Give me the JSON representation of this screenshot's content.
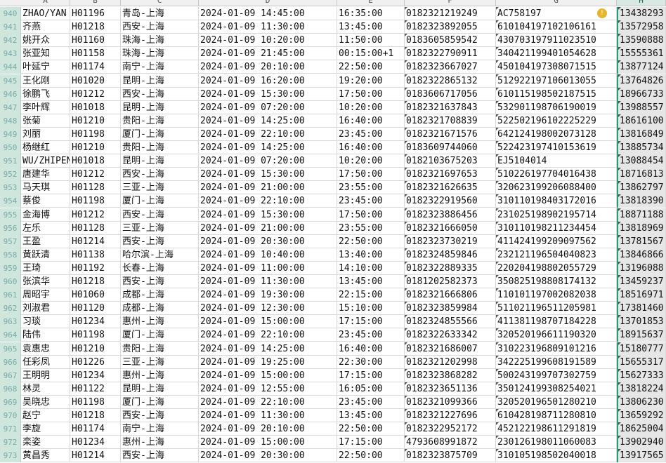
{
  "columns": [
    "A",
    "B",
    "C",
    "D",
    "E",
    "F",
    "G",
    "H"
  ],
  "selected_column": "H",
  "accent": "#1f9e7a",
  "warning_icon": "exclamation-circle-icon",
  "rows": [
    [
      "940",
      "ZHAO/YAN",
      "H01196",
      "青岛-上海",
      "2024-01-09 14:45:00",
      "16:35:00",
      "0182321219249",
      "AC758197",
      "13438293"
    ],
    [
      "941",
      "齐燕",
      "H01218",
      "西安-上海",
      "2024-01-09 11:30:00",
      "13:45:00",
      "0182323892055",
      "610104197102106161",
      "13572958"
    ],
    [
      "942",
      "姚开众",
      "H01160",
      "珠海-上海",
      "2024-01-09 10:20:00",
      "11:50:00",
      "0183605859542",
      "430703197911023510",
      "13590888"
    ],
    [
      "943",
      "张亚知",
      "H01158",
      "珠海-上海",
      "2024-01-09 21:45:00",
      "00:15:00+1",
      "0182322790911",
      "340421199401054628",
      "15555361"
    ],
    [
      "944",
      "叶延宁",
      "H01174",
      "南宁-上海",
      "2024-01-09 20:10:00",
      "22:50:00",
      "0182323667027",
      "450104197308071515",
      "13877124"
    ],
    [
      "945",
      "王化刚",
      "H01020",
      "昆明-上海",
      "2024-01-09 16:20:00",
      "19:20:00",
      "0182322865132",
      "512922197106013055",
      "13764826"
    ],
    [
      "946",
      "徐鹏飞",
      "H01212",
      "西安-上海",
      "2024-01-09 15:30:00",
      "17:50:00",
      "0183606717056",
      "610115198502187515",
      "18966733"
    ],
    [
      "947",
      "李叶辉",
      "H01018",
      "昆明-上海",
      "2024-01-09 07:20:00",
      "10:20:00",
      "0182321637843",
      "532901198706190019",
      "13988557"
    ],
    [
      "948",
      "张菊",
      "H01210",
      "贵阳-上海",
      "2024-01-09 14:25:00",
      "16:40:00",
      "0182321708839",
      "522502196102225229",
      "18616100"
    ],
    [
      "949",
      "刘丽",
      "H01198",
      "厦门-上海",
      "2024-01-09 22:10:00",
      "23:45:00",
      "0182321671576",
      "642124198002073128",
      "13816849"
    ],
    [
      "950",
      "杨继红",
      "H01210",
      "贵阳-上海",
      "2024-01-09 14:25:00",
      "16:40:00",
      "0183609744060",
      "522423197410153619",
      "13885734"
    ],
    [
      "951",
      "WU/ZHIPEN",
      "H01018",
      "昆明-上海",
      "2024-01-09 07:20:00",
      "10:20:00",
      "0182103675203",
      "EJ5104014",
      "13088454"
    ],
    [
      "952",
      "唐建华",
      "H01212",
      "西安-上海",
      "2024-01-09 15:30:00",
      "17:50:00",
      "0182321697653",
      "510226197704016438",
      "18716813"
    ],
    [
      "953",
      "马天琪",
      "H01128",
      "三亚-上海",
      "2024-01-09 21:00:00",
      "23:55:00",
      "0182321626635",
      "320623199206088400",
      "13862797"
    ],
    [
      "954",
      "蔡俊",
      "H01198",
      "厦门-上海",
      "2024-01-09 22:10:00",
      "23:45:00",
      "0182322919560",
      "310110198403172016",
      "13818390"
    ],
    [
      "955",
      "金海博",
      "H01212",
      "西安-上海",
      "2024-01-09 15:30:00",
      "17:50:00",
      "0182323886456",
      "231025198902195714",
      "18871188"
    ],
    [
      "956",
      "左乐",
      "H01128",
      "三亚-上海",
      "2024-01-09 21:00:00",
      "23:55:00",
      "0182321666050",
      "310110198211234454",
      "13818969"
    ],
    [
      "957",
      "王盈",
      "H01214",
      "西安-上海",
      "2024-01-09 20:30:00",
      "22:50:00",
      "0182323730219",
      "411424199209097562",
      "13781567"
    ],
    [
      "958",
      "黄跃清",
      "H01138",
      "哈尔滨-上海",
      "2024-01-09 10:40:00",
      "13:40:00",
      "0182324859846",
      "232121196504040823",
      "13846866"
    ],
    [
      "959",
      "王琦",
      "H01192",
      "长春-上海",
      "2024-01-09 11:00:00",
      "14:10:00",
      "0182322889335",
      "220204198802055729",
      "13196088"
    ],
    [
      "960",
      "张滨华",
      "H01218",
      "西安-上海",
      "2024-01-09 11:30:00",
      "13:45:00",
      "0181202582373",
      "350825198808174132",
      "13459237"
    ],
    [
      "961",
      "周昭宇",
      "H01060",
      "成都-上海",
      "2024-01-09 19:30:00",
      "22:15:00",
      "0182321666806",
      "110101197002082038",
      "18516971"
    ],
    [
      "962",
      "刘淑君",
      "H01120",
      "成都-上海",
      "2024-01-09 12:30:00",
      "15:10:00",
      "0182323859984",
      "511021196511205981",
      "17381460"
    ],
    [
      "963",
      "习琰",
      "H01234",
      "惠州-上海",
      "2024-01-09 15:00:00",
      "17:15:00",
      "0182324855566",
      "411381198707184228",
      "13701853"
    ],
    [
      "964",
      "陆伟",
      "H01198",
      "厦门-上海",
      "2024-01-09 22:10:00",
      "23:45:00",
      "0182322633342",
      "320520196611190320",
      "18915637"
    ],
    [
      "965",
      "袁惠忠",
      "H01210",
      "贵阳-上海",
      "2024-01-09 14:25:00",
      "16:40:00",
      "0182321686007",
      "310223196809101216",
      "15180777"
    ],
    [
      "966",
      "任彩凤",
      "H01226",
      "三亚-上海",
      "2024-01-09 19:25:00",
      "22:30:00",
      "0182321202998",
      "342225199608191589",
      "15655317"
    ],
    [
      "967",
      "王明明",
      "H01234",
      "惠州-上海",
      "2024-01-09 15:00:00",
      "17:15:00",
      "0182323868282",
      "500243199707302759",
      "15627333"
    ],
    [
      "968",
      "林灵",
      "H01122",
      "昆明-上海",
      "2024-01-09 12:55:00",
      "16:05:00",
      "0182323651136",
      "350124199308254021",
      "13818224"
    ],
    [
      "969",
      "吴晓忠",
      "H01198",
      "厦门-上海",
      "2024-01-09 22:10:00",
      "23:45:00",
      "0182321099366",
      "320520196501280210",
      "13806230"
    ],
    [
      "970",
      "赵宁",
      "H01218",
      "西安-上海",
      "2024-01-09 11:30:00",
      "13:45:00",
      "0182321227696",
      "610428198711280810",
      "13659292"
    ],
    [
      "971",
      "李旋",
      "H01174",
      "南宁-上海",
      "2024-01-09 20:10:00",
      "22:50:00",
      "0182322952172",
      "452122198611291819",
      "18625004"
    ],
    [
      "972",
      "栾姿",
      "H01234",
      "惠州-上海",
      "2024-01-09 15:00:00",
      "17:15:00",
      "4793608991872",
      "230126198011060083",
      "13902940"
    ],
    [
      "973",
      "黄昌秀",
      "H01214",
      "西安-上海",
      "2024-01-09 20:30:00",
      "22:50:00",
      "0182323875709",
      "310105198502040018",
      "13917565"
    ]
  ]
}
